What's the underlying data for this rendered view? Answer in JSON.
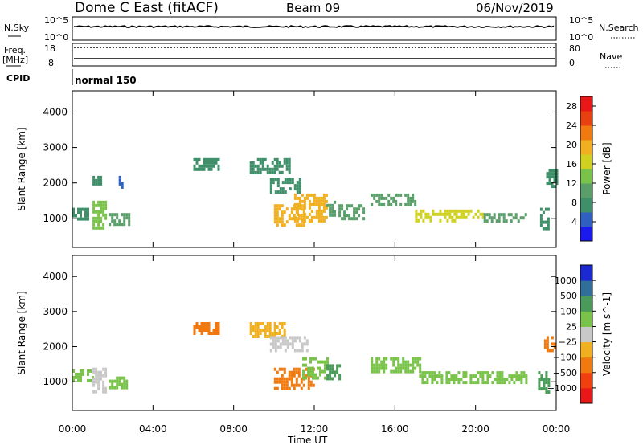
{
  "header": {
    "title": "Dome C East (fitACF)",
    "beam": "Beam 09",
    "date": "06/Nov/2019"
  },
  "strip_labels": {
    "nsky": "N.Sky",
    "nsearch": "N.Search",
    "freq_line1": "Freq.",
    "freq_line2": "[MHz]",
    "nave": "Nave",
    "cpid": "CPID",
    "cpid_value": "normal 150",
    "nsky_top": "10^5",
    "nsky_bottom": "10^0",
    "nsearch_top": "10^5",
    "nsearch_bottom": "10^0",
    "freq_top": "18",
    "freq_bottom": "8",
    "nave_top": "80",
    "nave_bottom": "0"
  },
  "colors": {
    "power_scale": [
      "#1a1aee",
      "#2f5fc0",
      "#3f8f6a",
      "#5a9f6a",
      "#79c34a",
      "#cfd020",
      "#f0b020",
      "#f07a10",
      "#e84010",
      "#e81818"
    ],
    "velocity_scale": [
      "#e81818",
      "#f04010",
      "#f07a10",
      "#f0b020",
      "#c8c8c8",
      "#79c34a",
      "#4a9a5a",
      "#2f6f9a",
      "#1a2ad0"
    ]
  },
  "chart_data": [
    {
      "type": "heatmap",
      "name": "power",
      "ylabel": "Slant Range [km]",
      "xlabel": "Time UT",
      "x_ticks": [
        "00:00",
        "04:00",
        "08:00",
        "12:00",
        "16:00",
        "20:00",
        "00:00"
      ],
      "x_range_hours": [
        0,
        24
      ],
      "y_ticks": [
        1000,
        2000,
        3000,
        4000
      ],
      "ylim": [
        180,
        4600
      ],
      "colorbar_label": "Power [dB]",
      "colorbar_ticks": [
        4,
        8,
        12,
        16,
        20,
        24,
        28
      ],
      "colorbar_range": [
        0,
        30
      ],
      "regions": [
        {
          "t": [
            1.0,
            1.6
          ],
          "r": [
            700,
            1500
          ],
          "v": 14
        },
        {
          "t": [
            1.8,
            2.8
          ],
          "r": [
            850,
            1150
          ],
          "v": 9
        },
        {
          "t": [
            0.0,
            0.8
          ],
          "r": [
            1000,
            1300
          ],
          "v": 8
        },
        {
          "t": [
            1.0,
            1.4
          ],
          "r": [
            1950,
            2200
          ],
          "v": 6
        },
        {
          "t": [
            2.3,
            2.6
          ],
          "r": [
            1900,
            2200
          ],
          "v": 5
        },
        {
          "t": [
            6.0,
            7.3
          ],
          "r": [
            2400,
            2700
          ],
          "v": 6
        },
        {
          "t": [
            8.8,
            10.8
          ],
          "r": [
            2250,
            2700
          ],
          "v": 7
        },
        {
          "t": [
            9.8,
            11.3
          ],
          "r": [
            1700,
            2150
          ],
          "v": 7
        },
        {
          "t": [
            10.0,
            11.5
          ],
          "r": [
            800,
            1400
          ],
          "v": 18
        },
        {
          "t": [
            11.0,
            12.6
          ],
          "r": [
            900,
            1700
          ],
          "v": 20
        },
        {
          "t": [
            12.6,
            13.0
          ],
          "r": [
            1050,
            1500
          ],
          "v": 10
        },
        {
          "t": [
            13.2,
            14.4
          ],
          "r": [
            950,
            1400
          ],
          "v": 9
        },
        {
          "t": [
            14.8,
            17.0
          ],
          "r": [
            1350,
            1700
          ],
          "v": 9
        },
        {
          "t": [
            17.0,
            19.0
          ],
          "r": [
            950,
            1250
          ],
          "v": 15
        },
        {
          "t": [
            19.0,
            20.4
          ],
          "r": [
            1000,
            1250
          ],
          "v": 17
        },
        {
          "t": [
            20.4,
            22.5
          ],
          "r": [
            950,
            1150
          ],
          "v": 9
        },
        {
          "t": [
            23.2,
            23.6
          ],
          "r": [
            700,
            1300
          ],
          "v": 8
        },
        {
          "t": [
            23.5,
            24.0
          ],
          "r": [
            1900,
            2400
          ],
          "v": 7
        }
      ]
    },
    {
      "type": "heatmap",
      "name": "velocity",
      "ylabel": "Slant Range [km]",
      "xlabel": "Time UT",
      "x_ticks": [
        "00:00",
        "04:00",
        "08:00",
        "12:00",
        "16:00",
        "20:00",
        "00:00"
      ],
      "x_range_hours": [
        0,
        24
      ],
      "y_ticks": [
        1000,
        2000,
        3000,
        4000
      ],
      "ylim": [
        180,
        4600
      ],
      "colorbar_label": "Velocity [m s^-1]",
      "colorbar_ticks": [
        "1000",
        "500",
        "100",
        "25",
        "−25",
        "−100",
        "−500",
        "−1000"
      ],
      "regions": [
        {
          "t": [
            0.0,
            1.0
          ],
          "r": [
            1000,
            1350
          ],
          "v": "100"
        },
        {
          "t": [
            1.0,
            1.7
          ],
          "r": [
            700,
            1400
          ],
          "v": "25"
        },
        {
          "t": [
            1.8,
            2.7
          ],
          "r": [
            850,
            1150
          ],
          "v": "100"
        },
        {
          "t": [
            6.0,
            7.3
          ],
          "r": [
            2400,
            2700
          ],
          "v": "-100"
        },
        {
          "t": [
            8.8,
            10.5
          ],
          "r": [
            2300,
            2700
          ],
          "v": "-25"
        },
        {
          "t": [
            9.8,
            11.6
          ],
          "r": [
            1900,
            2300
          ],
          "v": "25"
        },
        {
          "t": [
            10.0,
            12.0
          ],
          "r": [
            800,
            1400
          ],
          "v": "-100"
        },
        {
          "t": [
            11.4,
            12.6
          ],
          "r": [
            1100,
            1700
          ],
          "v": "100"
        },
        {
          "t": [
            12.6,
            13.2
          ],
          "r": [
            1050,
            1500
          ],
          "v": "500"
        },
        {
          "t": [
            14.8,
            17.2
          ],
          "r": [
            1300,
            1700
          ],
          "v": "100"
        },
        {
          "t": [
            17.2,
            22.5
          ],
          "r": [
            950,
            1300
          ],
          "v": "100"
        },
        {
          "t": [
            23.1,
            23.6
          ],
          "r": [
            700,
            1300
          ],
          "v": "500"
        },
        {
          "t": [
            23.4,
            23.9
          ],
          "r": [
            1900,
            2300
          ],
          "v": "-100"
        }
      ]
    }
  ]
}
